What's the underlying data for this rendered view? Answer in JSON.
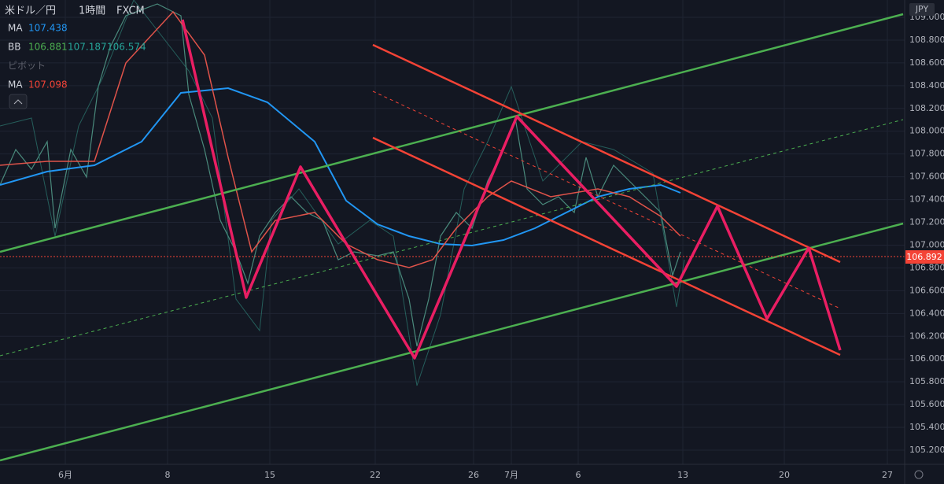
{
  "header": {
    "symbol": "米ドル／円",
    "interval": "1時間",
    "source": "FXCM"
  },
  "indicators": [
    {
      "name": "MA",
      "values": [
        "107.438"
      ]
    },
    {
      "name": "BB",
      "values": [
        "106.881",
        "107.187",
        "106.574"
      ]
    },
    {
      "name": "ピボット",
      "values": []
    },
    {
      "name": "MA",
      "values": [
        "107.098"
      ]
    }
  ],
  "price_axis": {
    "currency": "JPY",
    "current_price": "106.892",
    "labels": [
      "109.000",
      "108.800",
      "108.600",
      "108.400",
      "108.200",
      "108.000",
      "107.800",
      "107.600",
      "107.400",
      "107.200",
      "107.000",
      "106.800",
      "106.600",
      "106.400",
      "106.200",
      "106.000",
      "105.800",
      "105.600",
      "105.400",
      "105.200"
    ]
  },
  "time_axis": {
    "labels": [
      "6月",
      "8",
      "15",
      "22",
      "26",
      "7月",
      "6",
      "13",
      "20",
      "27"
    ]
  }
}
